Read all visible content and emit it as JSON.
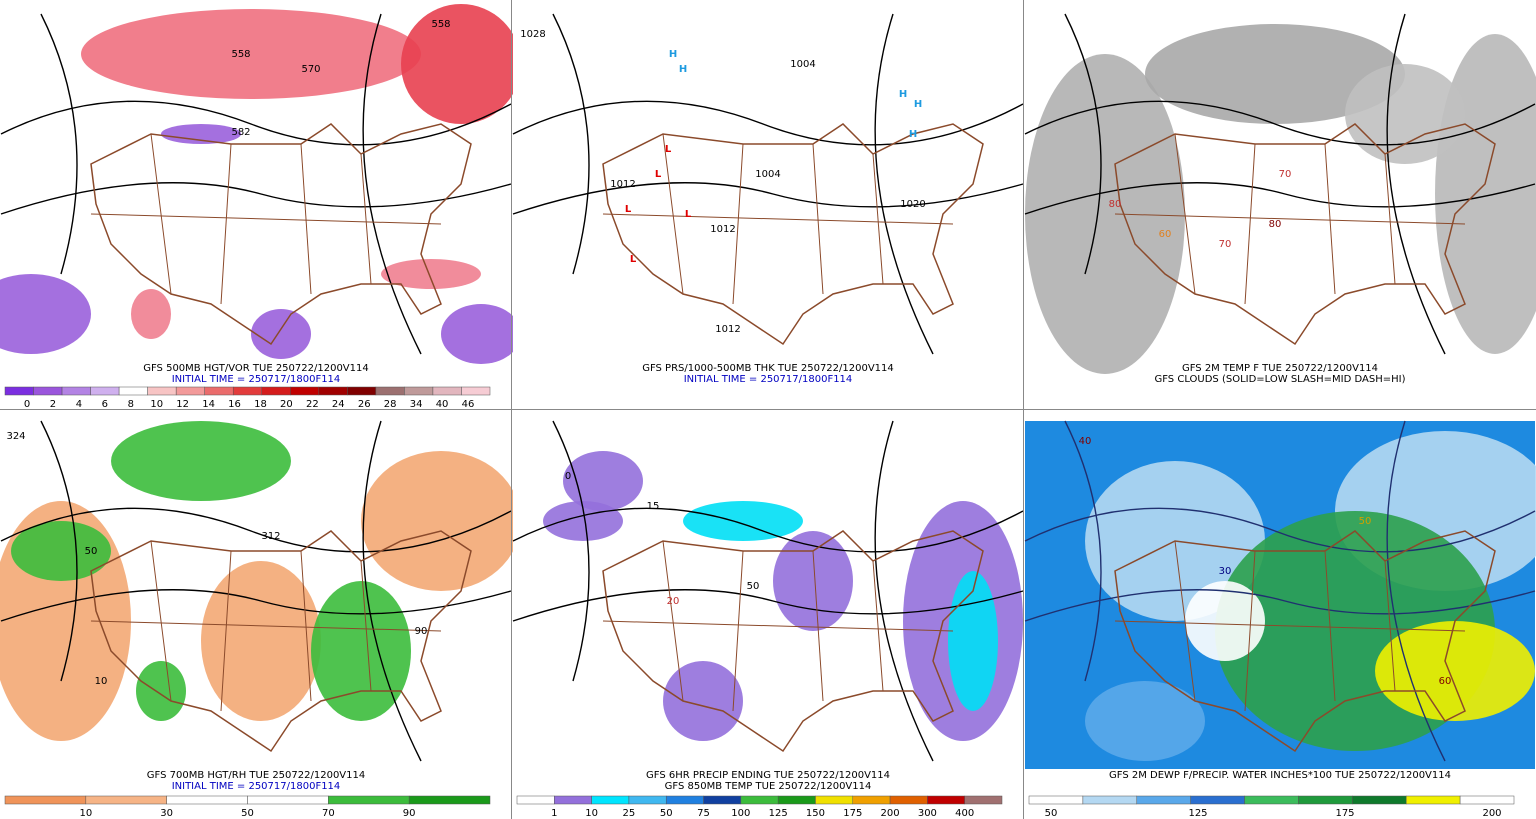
{
  "panels": [
    {
      "caption": [
        "GFS 500MB HGT/VOR TUE 250722/1200V114",
        "INITIAL TIME = 250717/1800F114"
      ],
      "caption_colors": [
        "#000000",
        "#0000c0"
      ],
      "colorbar": {
        "labels": [
          "0",
          "2",
          "4",
          "6",
          "8",
          "10",
          "12",
          "14",
          "16",
          "18",
          "20",
          "22",
          "24",
          "26",
          "28",
          "34",
          "40",
          "46"
        ],
        "colors": [
          "#7b2ee0",
          "#9a55dc",
          "#b383e4",
          "#cfb0ee",
          "#ffffff",
          "#f7c4c4",
          "#f29a9a",
          "#ea6c6c",
          "#e23c3c",
          "#d41c1c",
          "#c00000",
          "#a00000",
          "#800000",
          "#9c7070",
          "#bf9a9a",
          "#e2b6be",
          "#f6ccd4"
        ]
      },
      "map_labels": [
        {
          "text": "558",
          "color": "#000000"
        },
        {
          "text": "570",
          "color": "#000000"
        },
        {
          "text": "582",
          "color": "#000000"
        },
        {
          "text": "558",
          "color": "#000000"
        }
      ]
    },
    {
      "caption": [
        "GFS PRS/1000-500MB THK TUE 250722/1200V114",
        "INITIAL TIME = 250717/1800F114"
      ],
      "caption_colors": [
        "#000000",
        "#0000c0"
      ],
      "map_labels": [
        {
          "text": "1028",
          "color": "#000000"
        },
        {
          "text": "1004",
          "color": "#000000"
        },
        {
          "text": "1012",
          "color": "#000000"
        },
        {
          "text": "1004",
          "color": "#000000"
        },
        {
          "text": "1012",
          "color": "#000000"
        },
        {
          "text": "1020",
          "color": "#000000"
        },
        {
          "text": "1012",
          "color": "#000000"
        },
        {
          "text": "H",
          "color": "#1e9be0"
        },
        {
          "text": "H",
          "color": "#1e9be0"
        },
        {
          "text": "H",
          "color": "#1e9be0"
        },
        {
          "text": "H",
          "color": "#1e9be0"
        },
        {
          "text": "H",
          "color": "#1e9be0"
        },
        {
          "text": "L",
          "color": "#e00000"
        },
        {
          "text": "L",
          "color": "#e00000"
        },
        {
          "text": "L",
          "color": "#e00000"
        },
        {
          "text": "L",
          "color": "#e00000"
        },
        {
          "text": "L",
          "color": "#e00000"
        }
      ]
    },
    {
      "caption": [
        "GFS 2M TEMP F TUE 250722/1200V114",
        "GFS CLOUDS (SOLID=LOW SLASH=MID DASH=HI)"
      ],
      "caption_colors": [
        "#000000",
        "#000000"
      ],
      "map_labels": [
        {
          "text": "70",
          "color": "#c03030"
        },
        {
          "text": "80",
          "color": "#c03030"
        },
        {
          "text": "60",
          "color": "#e08020"
        },
        {
          "text": "70",
          "color": "#c03030"
        },
        {
          "text": "80",
          "color": "#800000"
        }
      ]
    },
    {
      "caption": [
        "GFS 700MB HGT/RH TUE 250722/1200V114",
        "INITIAL TIME = 250717/1800F114"
      ],
      "caption_colors": [
        "#000000",
        "#0000c0"
      ],
      "colorbar": {
        "labels": [
          "10",
          "30",
          "50",
          "70",
          "90"
        ],
        "colors": [
          "#f0945a",
          "#f6b486",
          "#ffffff",
          "#ffffff",
          "#3cbc3c",
          "#1a9a1a"
        ]
      },
      "map_labels": [
        {
          "text": "324",
          "color": "#000000"
        },
        {
          "text": "50",
          "color": "#000000"
        },
        {
          "text": "90",
          "color": "#000000"
        },
        {
          "text": "10",
          "color": "#000000"
        },
        {
          "text": "312",
          "color": "#000000"
        }
      ]
    },
    {
      "caption": [
        "GFS 6HR PRECIP ENDING TUE 250722/1200V114",
        "GFS 850MB TEMP TUE 250722/1200V114"
      ],
      "caption_colors": [
        "#000000",
        "#000000"
      ],
      "colorbar": {
        "labels": [
          "1",
          "10",
          "25",
          "50",
          "75",
          "100",
          "125",
          "150",
          "175",
          "200",
          "300",
          "400"
        ],
        "colors": [
          "#ffffff",
          "#9370db",
          "#00e5ff",
          "#40b8f0",
          "#2080e0",
          "#1040a0",
          "#3cbc3c",
          "#1a9a1a",
          "#f0e000",
          "#f0a000",
          "#e06000",
          "#c00000",
          "#a07070"
        ]
      },
      "map_labels": [
        {
          "text": "15",
          "color": "#000000"
        },
        {
          "text": "0",
          "color": "#000000"
        },
        {
          "text": "20",
          "color": "#c03030"
        },
        {
          "text": "50",
          "color": "#000000"
        }
      ]
    },
    {
      "caption": [
        "GFS 2M DEWP F/PRECIP. WATER INCHES*100 TUE 250722/1200V114"
      ],
      "caption_colors": [
        "#000000"
      ],
      "colorbar": {
        "labels": [
          "50",
          "125",
          "175",
          "200"
        ],
        "colors": [
          "#ffffff",
          "#b4d8f2",
          "#5aa8ea",
          "#2a6fd0",
          "#3cbc5c",
          "#1f9a3c",
          "#0f7a2c",
          "#f0f000",
          "#ffffff"
        ]
      },
      "map_labels": [
        {
          "text": "40",
          "color": "#800000"
        },
        {
          "text": "50",
          "color": "#d0a000"
        },
        {
          "text": "60",
          "color": "#800000"
        },
        {
          "text": "30",
          "color": "#000080"
        }
      ]
    }
  ]
}
